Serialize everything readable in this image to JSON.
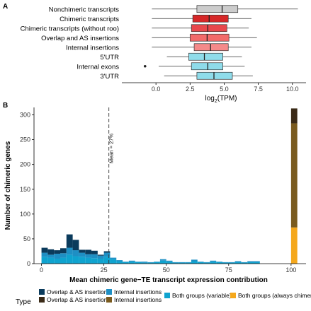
{
  "chart_data": [
    {
      "panel_label": "A",
      "type": "boxplot",
      "orientation": "horizontal",
      "xlabel": "log2(TPM)",
      "xlim": [
        -2.5,
        11
      ],
      "x_ticks": [
        "0.0",
        "2.5",
        "5.0",
        "7.5",
        "10.0"
      ],
      "x_tick_values": [
        0,
        2.5,
        5,
        7.5,
        10
      ],
      "categories": [
        "Nonchimeric transcripts",
        "Chimeric transcripts",
        "Chimeric transcripts (without roo)",
        "Overlap and AS insertions",
        "Internal insertions",
        "5'UTR",
        "Internal exons",
        "3'UTR"
      ],
      "boxes": [
        {
          "label": "Nonchimeric transcripts",
          "whisker_low": -0.3,
          "q1": 3.0,
          "median": 4.85,
          "q3": 6.0,
          "whisker_high": 10.4,
          "outliers": [],
          "color": "#cccccc"
        },
        {
          "label": "Chimeric transcripts",
          "whisker_low": -0.3,
          "q1": 2.7,
          "median": 3.9,
          "q3": 5.3,
          "whisker_high": 7.0,
          "outliers": [],
          "color": "#d62728"
        },
        {
          "label": "Chimeric transcripts (without roo)",
          "whisker_low": -0.3,
          "q1": 2.6,
          "median": 3.8,
          "q3": 5.2,
          "whisker_high": 6.8,
          "outliers": [],
          "color": "#e8474c"
        },
        {
          "label": "Overlap and AS insertions",
          "whisker_low": -0.3,
          "q1": 2.5,
          "median": 3.75,
          "q3": 5.35,
          "whisker_high": 7.4,
          "outliers": [],
          "color": "#f26a6a"
        },
        {
          "label": "Internal insertions",
          "whisker_low": -0.3,
          "q1": 2.8,
          "median": 4.0,
          "q3": 5.3,
          "whisker_high": 7.0,
          "outliers": [],
          "color": "#f48a8a"
        },
        {
          "label": "5'UTR",
          "whisker_low": 0.8,
          "q1": 2.4,
          "median": 3.55,
          "q3": 4.9,
          "whisker_high": 6.3,
          "outliers": [],
          "color": "#8fdcea"
        },
        {
          "label": "Internal exons",
          "whisker_low": 0.2,
          "q1": 2.6,
          "median": 3.8,
          "q3": 4.9,
          "whisker_high": 6.5,
          "outliers": [
            -0.8
          ],
          "color": "#8fdcea"
        },
        {
          "label": "3'UTR",
          "whisker_low": 0.6,
          "q1": 3.0,
          "median": 4.25,
          "q3": 5.6,
          "whisker_high": 7.1,
          "outliers": [],
          "color": "#8fdcea"
        }
      ],
      "grid": false
    },
    {
      "panel_label": "B",
      "type": "bar",
      "stacked": true,
      "xlabel": "Mean chimeric gene−TE transcript expression contribution",
      "ylabel": "Number of chimeric genes",
      "xlim": [
        -3,
        106
      ],
      "ylim": [
        0,
        315
      ],
      "x_ticks": [
        "0",
        "25",
        "50",
        "75",
        "100"
      ],
      "x_tick_values": [
        0,
        25,
        50,
        75,
        100
      ],
      "y_ticks": [
        "0",
        "50",
        "100",
        "150",
        "200",
        "250",
        "300"
      ],
      "y_tick_values": [
        0,
        50,
        100,
        150,
        200,
        250,
        300
      ],
      "bin_width": 2.5,
      "bin_starts": [
        0,
        2.5,
        5,
        7.5,
        10,
        12.5,
        15,
        17.5,
        20,
        22.5,
        25,
        27.5,
        30,
        32.5,
        35,
        37.5,
        40,
        42.5,
        45,
        47.5,
        50,
        52.5,
        55,
        57.5,
        60,
        62.5,
        65,
        67.5,
        70,
        72.5,
        75,
        77.5,
        80,
        82.5,
        85,
        87.5,
        90,
        92.5,
        97.5,
        100
      ],
      "series": [
        {
          "name": "Both groups (variable)",
          "group": "Both groups",
          "color": "#0fa3cf",
          "values": [
            14,
            12,
            10,
            12,
            18,
            15,
            14,
            12,
            11,
            10,
            14,
            9,
            5,
            3,
            4,
            3,
            2,
            2,
            3,
            6,
            4,
            2,
            2,
            2,
            5,
            3,
            2,
            4,
            3,
            2,
            2,
            3,
            2,
            3,
            3,
            0,
            0,
            0,
            0,
            0
          ]
        },
        {
          "name": "Both groups (always chimeric)",
          "group": "Both groups",
          "color": "#f5a81c",
          "values": [
            0,
            0,
            0,
            0,
            0,
            0,
            0,
            0,
            0,
            0,
            0,
            0,
            0,
            0,
            0,
            0,
            0,
            0,
            0,
            0,
            0,
            0,
            0,
            0,
            0,
            0,
            0,
            0,
            0,
            0,
            0,
            0,
            0,
            0,
            0,
            0,
            0,
            0,
            0,
            73
          ]
        },
        {
          "name": "Internal insertions (variable)",
          "group": "Internal insertions",
          "color": "#1e8fc4",
          "values": [
            8,
            6,
            10,
            9,
            14,
            12,
            8,
            7,
            8,
            6,
            8,
            3,
            2,
            1,
            2,
            1,
            2,
            1,
            1,
            3,
            2,
            1,
            1,
            1,
            3,
            1,
            1,
            2,
            1,
            1,
            1,
            2,
            1,
            2,
            2,
            0,
            0,
            0,
            0,
            0
          ]
        },
        {
          "name": "Internal insertions (always chimeric)",
          "group": "Internal insertions",
          "color": "#7a5b1f",
          "values": [
            0,
            0,
            0,
            0,
            0,
            0,
            0,
            0,
            0,
            0,
            0,
            0,
            0,
            0,
            0,
            0,
            0,
            0,
            0,
            0,
            0,
            0,
            0,
            0,
            0,
            0,
            0,
            0,
            0,
            0,
            0,
            0,
            0,
            0,
            0,
            0,
            0,
            0,
            0,
            210
          ]
        },
        {
          "name": "Overlap & AS insertions (variable)",
          "group": "Overlap & AS insertions",
          "color": "#0b3b5c",
          "values": [
            10,
            11,
            7,
            10,
            27,
            21,
            6,
            9,
            7,
            2,
            3,
            0,
            0,
            0,
            0,
            0,
            0,
            0,
            0,
            0,
            0,
            0,
            0,
            0,
            0,
            0,
            0,
            0,
            0,
            0,
            0,
            0,
            0,
            0,
            0,
            0,
            0,
            0,
            0,
            0
          ]
        },
        {
          "name": "Overlap & AS insertions (always chimeric)",
          "group": "Overlap & AS insertions",
          "color": "#3a2a17",
          "values": [
            0,
            0,
            0,
            0,
            0,
            0,
            0,
            0,
            0,
            0,
            0,
            0,
            0,
            0,
            0,
            0,
            0,
            0,
            0,
            0,
            0,
            0,
            0,
            0,
            0,
            0,
            0,
            0,
            0,
            0,
            0,
            0,
            0,
            0,
            0,
            0,
            0,
            0,
            0,
            30
          ]
        }
      ],
      "vline": {
        "x": 27,
        "style": "dashed",
        "label": "Mean = 27%"
      },
      "legend": {
        "placement": "bottom",
        "title": "Type",
        "entries": [
          {
            "label": "Overlap & AS insertions",
            "color": "#0b3b5c"
          },
          {
            "label": "Overlap & AS insertions",
            "color": "#3a2a17"
          },
          {
            "label": "Internal insertions",
            "color": "#1e8fc4"
          },
          {
            "label": "Internal insertions",
            "color": "#7a5b1f"
          },
          {
            "label": "Both groups (variable)",
            "color": "#0fa3cf"
          },
          {
            "label": "Both groups (always chimeric)",
            "color": "#f5a81c"
          }
        ]
      },
      "grid": false
    }
  ]
}
